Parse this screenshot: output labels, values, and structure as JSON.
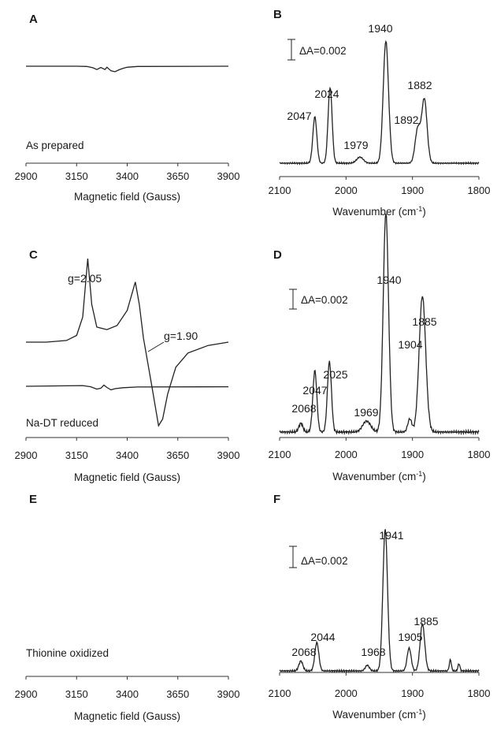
{
  "figure": {
    "panels": [
      {
        "letter": "A",
        "kind": "epr",
        "xlabel": "Magnetic field (Gauss)",
        "ticks": [
          "2900",
          "3150",
          "3400",
          "3650",
          "3900"
        ],
        "note": "As prepared",
        "annotations": []
      },
      {
        "letter": "B",
        "kind": "ir",
        "xlabel": "Wavenumber (cm",
        "xlabel_sup": "-1",
        "xlabel_end": ")",
        "ticks": [
          "2100",
          "2000",
          "1900",
          "1800"
        ],
        "scalebar": "ΔA=0.002",
        "peaks": [
          "2047",
          "2024",
          "1979",
          "1940",
          "1892",
          "1882"
        ]
      },
      {
        "letter": "C",
        "kind": "epr",
        "xlabel": "Magnetic field (Gauss)",
        "ticks": [
          "2900",
          "3150",
          "3400",
          "3650",
          "3900"
        ],
        "note": "Na-DT reduced",
        "annotations": [
          "g=2.05",
          "g=1.90"
        ]
      },
      {
        "letter": "D",
        "kind": "ir",
        "xlabel": "Wavenumber (cm",
        "xlabel_sup": "-1",
        "xlabel_end": ")",
        "ticks": [
          "2100",
          "2000",
          "1900",
          "1800"
        ],
        "scalebar": "ΔA=0.002",
        "peaks": [
          "2068",
          "2047",
          "2025",
          "1969",
          "1940",
          "1904",
          "1885"
        ]
      },
      {
        "letter": "E",
        "kind": "epr",
        "xlabel": "Magnetic field (Gauss)",
        "ticks": [
          "2900",
          "3150",
          "3400",
          "3650",
          "3900"
        ],
        "note": "Thionine oxidized",
        "annotations": []
      },
      {
        "letter": "F",
        "kind": "ir",
        "xlabel": "Wavenumber (cm",
        "xlabel_sup": "-1",
        "xlabel_end": ")",
        "ticks": [
          "2100",
          "2000",
          "1900",
          "1800"
        ],
        "scalebar": "ΔA=0.002",
        "peaks": [
          "2068",
          "2044",
          "1968",
          "1941",
          "1905",
          "1885"
        ]
      }
    ]
  },
  "chart_data": [
    {
      "panel": "A",
      "type": "line",
      "xlabel": "Magnetic field (Gauss)",
      "ylabel": "",
      "xlim": [
        2900,
        3900
      ],
      "grid": false,
      "annotation": "As prepared",
      "series": [
        {
          "points": [
            [
              2900,
              0
            ],
            [
              3150,
              0
            ],
            [
              3200,
              -0.01
            ],
            [
              3230,
              -0.06
            ],
            [
              3250,
              -0.13
            ],
            [
              3270,
              -0.05
            ],
            [
              3290,
              -0.13
            ],
            [
              3300,
              -0.04
            ],
            [
              3320,
              -0.18
            ],
            [
              3340,
              -0.22
            ],
            [
              3360,
              -0.14
            ],
            [
              3380,
              -0.08
            ],
            [
              3400,
              -0.04
            ],
            [
              3450,
              -0.01
            ],
            [
              3900,
              0
            ]
          ]
        }
      ]
    },
    {
      "panel": "B",
      "type": "line",
      "xlabel": "Wavenumber (cm-1)",
      "ylabel": "",
      "xlim": [
        2100,
        1800
      ],
      "grid": false,
      "scale_bar": "ΔA=0.002",
      "peaks_cm-1": [
        2047,
        2024,
        1979,
        1940,
        1892,
        1882
      ],
      "series": [
        {
          "peaks": [
            {
              "x": 2047,
              "h": 0.38,
              "w": 3
            },
            {
              "x": 2024,
              "h": 0.62,
              "w": 3
            },
            {
              "x": 1979,
              "h": 0.05,
              "w": 5
            },
            {
              "x": 1940,
              "h": 1.0,
              "w": 4
            },
            {
              "x": 1892,
              "h": 0.28,
              "w": 4
            },
            {
              "x": 1882,
              "h": 0.52,
              "w": 4
            }
          ]
        }
      ]
    },
    {
      "panel": "C",
      "type": "line",
      "xlabel": "Magnetic field (Gauss)",
      "ylabel": "",
      "xlim": [
        2900,
        3900
      ],
      "grid": false,
      "annotation": "Na-DT reduced",
      "g_values": [
        "g=2.05",
        "g=1.90"
      ],
      "series": [
        {
          "points": [
            [
              2900,
              0
            ],
            [
              3000,
              0
            ],
            [
              3100,
              0.02
            ],
            [
              3150,
              0.08
            ],
            [
              3180,
              0.3
            ],
            [
              3205,
              1.0
            ],
            [
              3225,
              0.45
            ],
            [
              3250,
              0.18
            ],
            [
              3300,
              0.15
            ],
            [
              3350,
              0.2
            ],
            [
              3400,
              0.38
            ],
            [
              3440,
              0.72
            ],
            [
              3460,
              0.45
            ],
            [
              3480,
              0.05
            ],
            [
              3520,
              -0.5
            ],
            [
              3555,
              -1.0
            ],
            [
              3575,
              -0.92
            ],
            [
              3600,
              -0.62
            ],
            [
              3640,
              -0.3
            ],
            [
              3700,
              -0.13
            ],
            [
              3800,
              -0.04
            ],
            [
              3900,
              0
            ]
          ]
        }
      ]
    },
    {
      "panel": "D",
      "type": "line",
      "xlabel": "Wavenumber (cm-1)",
      "ylabel": "",
      "xlim": [
        2100,
        1800
      ],
      "grid": false,
      "scale_bar": "ΔA=0.002",
      "peaks_cm-1": [
        2068,
        2047,
        2025,
        1969,
        1940,
        1904,
        1885
      ],
      "series": [
        {
          "peaks": [
            {
              "x": 2068,
              "h": 0.04,
              "w": 3
            },
            {
              "x": 2047,
              "h": 0.28,
              "w": 3
            },
            {
              "x": 2025,
              "h": 0.32,
              "w": 3
            },
            {
              "x": 1969,
              "h": 0.05,
              "w": 6
            },
            {
              "x": 1940,
              "h": 1.0,
              "w": 4
            },
            {
              "x": 1904,
              "h": 0.06,
              "w": 3
            },
            {
              "x": 1885,
              "h": 0.62,
              "w": 5
            }
          ]
        }
      ]
    },
    {
      "panel": "E",
      "type": "line",
      "xlabel": "Magnetic field (Gauss)",
      "ylabel": "",
      "xlim": [
        2900,
        3900
      ],
      "grid": false,
      "annotation": "Thionine oxidized",
      "series": [
        {
          "points": [
            [
              2900,
              0
            ],
            [
              3100,
              0.02
            ],
            [
              3180,
              0.03
            ],
            [
              3220,
              -0.02
            ],
            [
              3250,
              -0.12
            ],
            [
              3270,
              -0.08
            ],
            [
              3285,
              0.05
            ],
            [
              3300,
              -0.05
            ],
            [
              3320,
              -0.15
            ],
            [
              3340,
              -0.1
            ],
            [
              3380,
              -0.06
            ],
            [
              3450,
              -0.03
            ],
            [
              3900,
              -0.02
            ]
          ]
        }
      ]
    },
    {
      "panel": "F",
      "type": "line",
      "xlabel": "Wavenumber (cm-1)",
      "ylabel": "",
      "xlim": [
        2100,
        1800
      ],
      "grid": false,
      "scale_bar": "ΔA=0.002",
      "peaks_cm-1": [
        2068,
        2044,
        1968,
        1941,
        1905,
        1885
      ],
      "series": [
        {
          "peaks": [
            {
              "x": 2068,
              "h": 0.07,
              "w": 3
            },
            {
              "x": 2044,
              "h": 0.2,
              "w": 3
            },
            {
              "x": 1968,
              "h": 0.04,
              "w": 3
            },
            {
              "x": 1941,
              "h": 1.0,
              "w": 3.5
            },
            {
              "x": 1905,
              "h": 0.16,
              "w": 3
            },
            {
              "x": 1885,
              "h": 0.33,
              "w": 3.5
            },
            {
              "x": 1843,
              "h": 0.08,
              "w": 1.5
            },
            {
              "x": 1830,
              "h": 0.05,
              "w": 1.5
            }
          ]
        }
      ]
    }
  ]
}
